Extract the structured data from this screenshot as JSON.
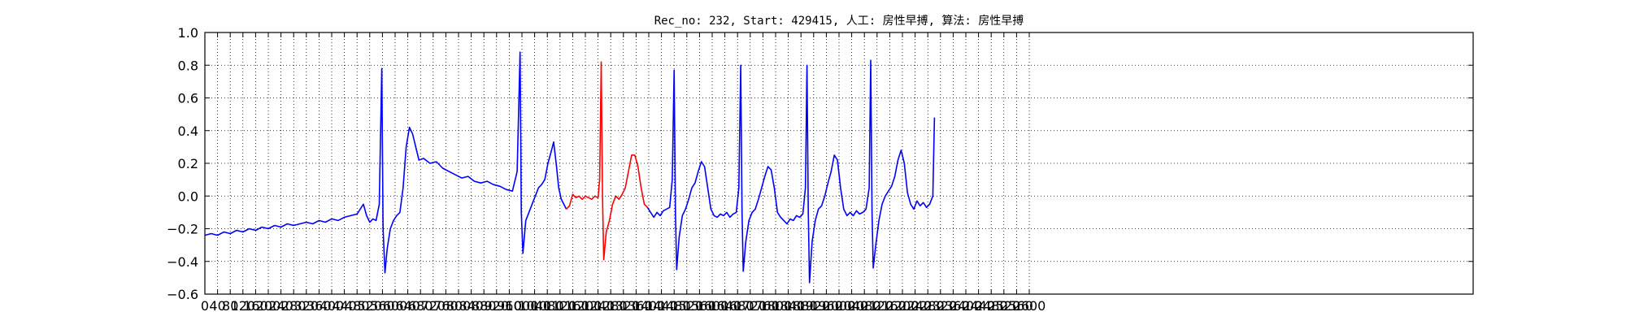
{
  "chart_data": {
    "type": "line",
    "title": "Rec_no: 232, Start: 429415, 人工: 房性早搏, 算法: 房性早搏",
    "xlabel": "",
    "ylabel": "",
    "xlim": [
      0,
      4000
    ],
    "ylim": [
      -0.6,
      1.0
    ],
    "grid": true,
    "grid_style": "dotted",
    "y_ticks": [
      -0.6,
      -0.4,
      -0.2,
      0.0,
      0.2,
      0.4,
      0.6,
      0.8,
      1.0
    ],
    "y_tick_labels": [
      "−0.6",
      "−0.4",
      "−0.2",
      "0.0",
      "0.2",
      "0.4",
      "0.6",
      "0.8",
      "1.0"
    ],
    "x_ticks": [
      0,
      40,
      80,
      120,
      160,
      200,
      240,
      280,
      320,
      360,
      400,
      440,
      480,
      520,
      560,
      600,
      640,
      680,
      720,
      760,
      800,
      840,
      880,
      920,
      960,
      1000,
      1040,
      1080,
      1120,
      1160,
      1200,
      1240,
      1280,
      1320,
      1360,
      1400,
      1440,
      1480,
      1520,
      1560,
      1600,
      1640,
      1680,
      1720,
      1760,
      1800,
      1840,
      1880,
      1920,
      1960,
      2000,
      2040,
      2080,
      2120,
      2160,
      2200,
      2240,
      2280,
      2320,
      2360,
      2400,
      2440,
      2480,
      2520,
      2560,
      2600
    ],
    "x_tick_labels": [
      "0",
      "40",
      "80",
      "120",
      "160",
      "200",
      "240",
      "280",
      "320",
      "360",
      "400",
      "440",
      "480",
      "520",
      "560",
      "600",
      "640",
      "680",
      "720",
      "760",
      "800",
      "840",
      "880",
      "920",
      "960",
      "1000",
      "1040",
      "1080",
      "1120",
      "1160",
      "1200",
      "1240",
      "1280",
      "1320",
      "1360",
      "1400",
      "1440",
      "1480",
      "1520",
      "1560",
      "1600",
      "1640",
      "1680",
      "1720",
      "1760",
      "1800",
      "1840",
      "1880",
      "1920",
      "1960",
      "2000",
      "2040",
      "2080",
      "2120",
      "2160",
      "2200",
      "2240",
      "2280",
      "2320",
      "2360",
      "2400",
      "2440",
      "2480",
      "2520",
      "2560",
      "2600"
    ],
    "series": [
      {
        "color": "#0000ff",
        "points": [
          [
            0,
            -0.24
          ],
          [
            20,
            -0.23
          ],
          [
            40,
            -0.24
          ],
          [
            60,
            -0.22
          ],
          [
            80,
            -0.23
          ],
          [
            100,
            -0.21
          ],
          [
            120,
            -0.22
          ],
          [
            140,
            -0.2
          ],
          [
            160,
            -0.21
          ],
          [
            180,
            -0.19
          ],
          [
            200,
            -0.2
          ],
          [
            220,
            -0.18
          ],
          [
            240,
            -0.19
          ],
          [
            260,
            -0.17
          ],
          [
            280,
            -0.18
          ],
          [
            300,
            -0.17
          ],
          [
            320,
            -0.16
          ],
          [
            340,
            -0.17
          ],
          [
            360,
            -0.15
          ],
          [
            380,
            -0.16
          ],
          [
            400,
            -0.14
          ],
          [
            420,
            -0.15
          ],
          [
            440,
            -0.13
          ],
          [
            460,
            -0.12
          ],
          [
            480,
            -0.11
          ],
          [
            500,
            -0.05
          ],
          [
            510,
            -0.12
          ],
          [
            520,
            -0.16
          ],
          [
            530,
            -0.14
          ],
          [
            540,
            -0.15
          ],
          [
            550,
            -0.05
          ],
          [
            558,
            0.78
          ],
          [
            562,
            -0.2
          ],
          [
            568,
            -0.47
          ],
          [
            575,
            -0.32
          ],
          [
            585,
            -0.2
          ],
          [
            595,
            -0.15
          ],
          [
            605,
            -0.12
          ],
          [
            615,
            -0.1
          ],
          [
            625,
            0.05
          ],
          [
            635,
            0.3
          ],
          [
            645,
            0.42
          ],
          [
            655,
            0.38
          ],
          [
            665,
            0.3
          ],
          [
            675,
            0.22
          ],
          [
            690,
            0.23
          ],
          [
            710,
            0.2
          ],
          [
            730,
            0.21
          ],
          [
            750,
            0.17
          ],
          [
            770,
            0.15
          ],
          [
            790,
            0.13
          ],
          [
            810,
            0.11
          ],
          [
            830,
            0.12
          ],
          [
            850,
            0.09
          ],
          [
            870,
            0.08
          ],
          [
            890,
            0.09
          ],
          [
            910,
            0.07
          ],
          [
            930,
            0.06
          ],
          [
            950,
            0.04
          ],
          [
            970,
            0.03
          ],
          [
            985,
            0.15
          ],
          [
            994,
            0.88
          ],
          [
            998,
            -0.1
          ],
          [
            1003,
            -0.35
          ],
          [
            1012,
            -0.15
          ],
          [
            1022,
            -0.1
          ],
          [
            1032,
            -0.05
          ],
          [
            1042,
            0.0
          ],
          [
            1052,
            0.05
          ],
          [
            1062,
            0.07
          ],
          [
            1072,
            0.1
          ],
          [
            1082,
            0.2
          ],
          [
            1092,
            0.27
          ],
          [
            1100,
            0.33
          ],
          [
            1108,
            0.2
          ],
          [
            1116,
            0.05
          ],
          [
            1124,
            -0.02
          ],
          [
            1132,
            -0.05
          ],
          [
            1140,
            -0.08
          ]
        ]
      },
      {
        "color": "#ff0000",
        "points": [
          [
            1140,
            -0.08
          ],
          [
            1150,
            -0.06
          ],
          [
            1160,
            0.01
          ],
          [
            1170,
            -0.01
          ],
          [
            1180,
            0.0
          ],
          [
            1190,
            -0.02
          ],
          [
            1200,
            0.0
          ],
          [
            1210,
            -0.01
          ],
          [
            1220,
            -0.02
          ],
          [
            1230,
            0.0
          ],
          [
            1240,
            -0.01
          ],
          [
            1245,
            0.1
          ],
          [
            1250,
            0.82
          ],
          [
            1254,
            0.0
          ],
          [
            1258,
            -0.39
          ],
          [
            1266,
            -0.22
          ],
          [
            1276,
            -0.15
          ],
          [
            1286,
            -0.05
          ],
          [
            1296,
            0.0
          ],
          [
            1306,
            -0.02
          ],
          [
            1316,
            0.01
          ],
          [
            1326,
            0.05
          ],
          [
            1336,
            0.15
          ],
          [
            1346,
            0.25
          ],
          [
            1356,
            0.25
          ],
          [
            1366,
            0.18
          ],
          [
            1376,
            0.05
          ],
          [
            1386,
            -0.05
          ],
          [
            1396,
            -0.07
          ]
        ]
      },
      {
        "color": "#0000ff",
        "points": [
          [
            1396,
            -0.07
          ],
          [
            1406,
            -0.1
          ],
          [
            1416,
            -0.13
          ],
          [
            1426,
            -0.1
          ],
          [
            1436,
            -0.12
          ],
          [
            1446,
            -0.09
          ],
          [
            1456,
            -0.08
          ],
          [
            1466,
            -0.07
          ],
          [
            1474,
            0.1
          ],
          [
            1480,
            0.77
          ],
          [
            1484,
            -0.1
          ],
          [
            1488,
            -0.45
          ],
          [
            1496,
            -0.25
          ],
          [
            1506,
            -0.12
          ],
          [
            1516,
            -0.08
          ],
          [
            1526,
            -0.02
          ],
          [
            1536,
            0.05
          ],
          [
            1546,
            0.08
          ],
          [
            1556,
            0.15
          ],
          [
            1566,
            0.21
          ],
          [
            1576,
            0.18
          ],
          [
            1586,
            0.05
          ],
          [
            1596,
            -0.08
          ],
          [
            1606,
            -0.12
          ],
          [
            1616,
            -0.13
          ],
          [
            1626,
            -0.11
          ],
          [
            1636,
            -0.12
          ],
          [
            1646,
            -0.1
          ],
          [
            1656,
            -0.13
          ],
          [
            1666,
            -0.11
          ],
          [
            1676,
            -0.1
          ],
          [
            1684,
            0.05
          ],
          [
            1690,
            0.8
          ],
          [
            1694,
            -0.1
          ],
          [
            1698,
            -0.46
          ],
          [
            1706,
            -0.28
          ],
          [
            1716,
            -0.15
          ],
          [
            1726,
            -0.1
          ],
          [
            1736,
            -0.08
          ],
          [
            1746,
            -0.02
          ],
          [
            1756,
            0.05
          ],
          [
            1766,
            0.12
          ],
          [
            1776,
            0.18
          ],
          [
            1786,
            0.16
          ],
          [
            1796,
            0.05
          ],
          [
            1806,
            -0.1
          ],
          [
            1816,
            -0.13
          ],
          [
            1826,
            -0.15
          ],
          [
            1836,
            -0.17
          ],
          [
            1846,
            -0.14
          ],
          [
            1856,
            -0.15
          ],
          [
            1866,
            -0.12
          ],
          [
            1876,
            -0.13
          ],
          [
            1886,
            -0.11
          ],
          [
            1894,
            0.05
          ],
          [
            1899,
            0.8
          ],
          [
            1903,
            -0.1
          ],
          [
            1907,
            -0.53
          ],
          [
            1915,
            -0.28
          ],
          [
            1925,
            -0.15
          ],
          [
            1935,
            -0.08
          ],
          [
            1945,
            -0.06
          ],
          [
            1955,
            0.0
          ],
          [
            1965,
            0.08
          ],
          [
            1975,
            0.15
          ],
          [
            1985,
            0.25
          ],
          [
            1995,
            0.22
          ],
          [
            2005,
            0.05
          ],
          [
            2015,
            -0.08
          ],
          [
            2025,
            -0.12
          ],
          [
            2035,
            -0.1
          ],
          [
            2045,
            -0.12
          ],
          [
            2055,
            -0.09
          ],
          [
            2065,
            -0.11
          ],
          [
            2075,
            -0.1
          ],
          [
            2085,
            -0.08
          ],
          [
            2095,
            0.05
          ],
          [
            2100,
            0.83
          ],
          [
            2104,
            -0.1
          ],
          [
            2108,
            -0.44
          ],
          [
            2116,
            -0.3
          ],
          [
            2126,
            -0.15
          ],
          [
            2136,
            -0.05
          ],
          [
            2146,
            0.0
          ],
          [
            2156,
            0.03
          ],
          [
            2166,
            0.06
          ],
          [
            2176,
            0.12
          ],
          [
            2186,
            0.22
          ],
          [
            2196,
            0.28
          ],
          [
            2206,
            0.2
          ],
          [
            2216,
            0.02
          ],
          [
            2226,
            -0.05
          ],
          [
            2236,
            -0.08
          ],
          [
            2246,
            -0.03
          ],
          [
            2256,
            -0.06
          ],
          [
            2266,
            -0.04
          ],
          [
            2276,
            -0.07
          ],
          [
            2286,
            -0.05
          ],
          [
            2296,
            0.0
          ],
          [
            2301,
            0.48
          ]
        ]
      }
    ]
  }
}
